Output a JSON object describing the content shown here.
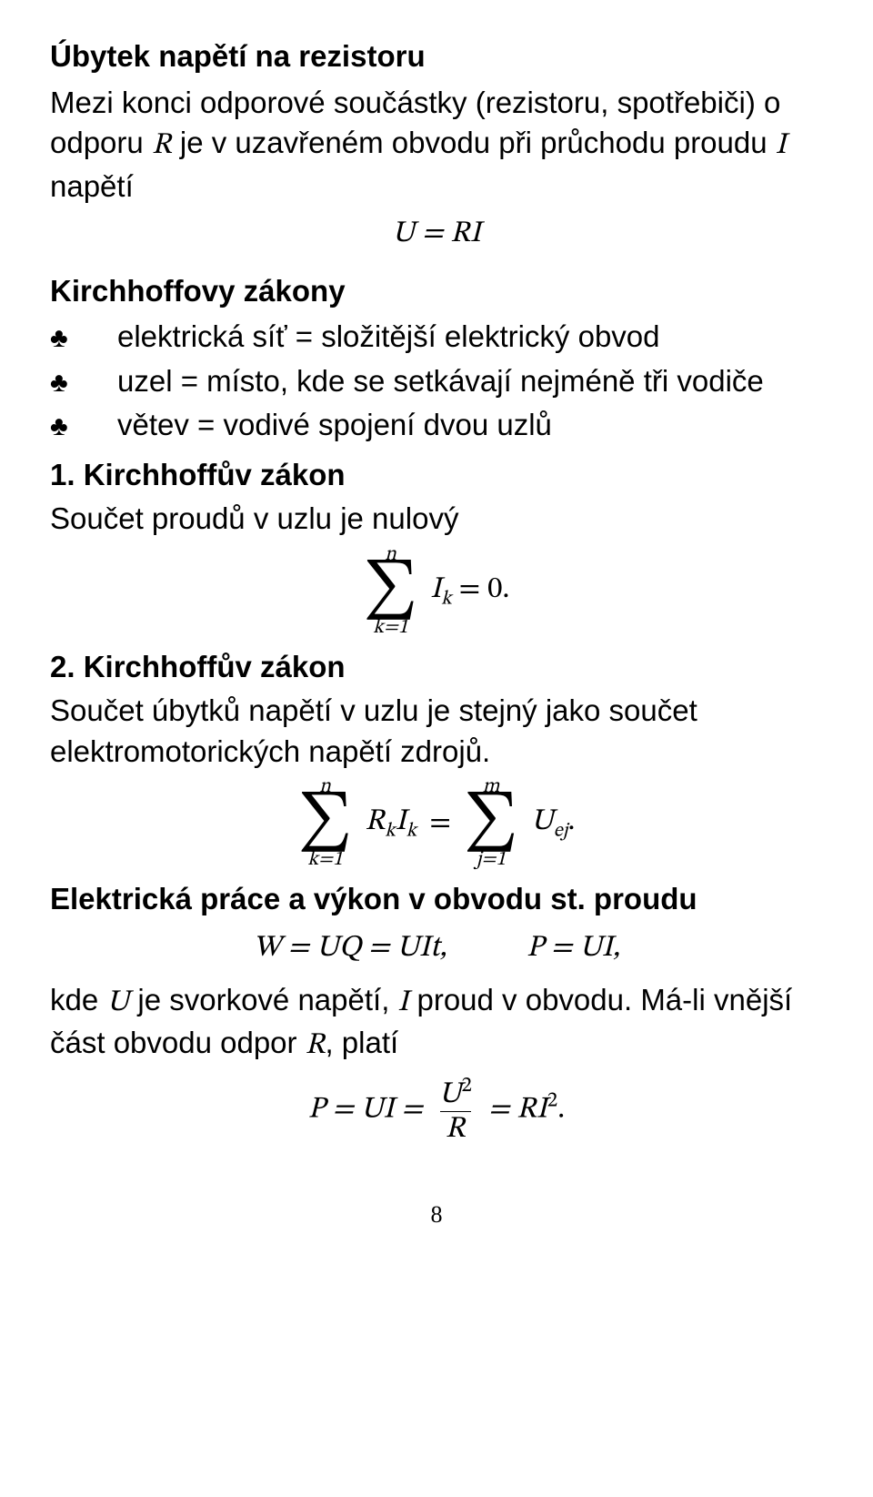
{
  "section1": {
    "heading": "Úbytek napětí na rezistoru",
    "para_pre": "Mezi konci odporové součástky (rezistoru, spotřebiči) o odporu ",
    "R": "R",
    "para_mid": " je v uzavřeném obvodu při průchodu proudu ",
    "I": "I",
    "para_post": " napětí",
    "eq": "U = RI"
  },
  "section2": {
    "heading": "Kirchhoffovy zákony",
    "bullets": [
      "elektrická síť = složitější elektrický obvod",
      "uzel = místo, kde se setkávají nejméně tři vodiče",
      "větev = vodivé spojení dvou uzlů"
    ],
    "club": "♣"
  },
  "law1": {
    "heading": "1. Kirchhoffův zákon",
    "text": "Součet proudů v uzlu je nulový",
    "sum": {
      "top": "n",
      "bottom": "k=1",
      "body_l": "I",
      "body_sub": "k",
      "rhs": " = 0."
    }
  },
  "law2": {
    "heading": "2. Kirchhoffův zákon",
    "text": "Součet úbytků napětí v uzlu je stejný jako součet elektromotorických napětí zdrojů.",
    "sum_left": {
      "top": "n",
      "bottom": "k=1",
      "body": "R",
      "sub1": "k",
      "body2": "I",
      "sub2": "k"
    },
    "eq_mid": " = ",
    "sum_right": {
      "top": "m",
      "bottom": "j=1",
      "body": "U",
      "sub": "ej",
      "tail": "."
    }
  },
  "work": {
    "heading": "Elektrická práce a výkon v obvodu st. proudu",
    "eq1a": "W = UQ = UIt,",
    "eq1b": "P = UI,",
    "para_pre": "kde ",
    "U": "U",
    "para_mid1": " je svorkové napětí, ",
    "Ivar": "I",
    "para_mid2": " proud v obvodu. Má-li vnější část obvodu odpor ",
    "Rvar": "R",
    "para_post": ", platí",
    "eq2_lhs": "P = UI = ",
    "frac_num": "U",
    "frac_num_sup": "2",
    "frac_den": "R",
    "eq2_rhs": " = RI",
    "eq2_sup": "2",
    "eq2_tail": "."
  },
  "page": "8"
}
